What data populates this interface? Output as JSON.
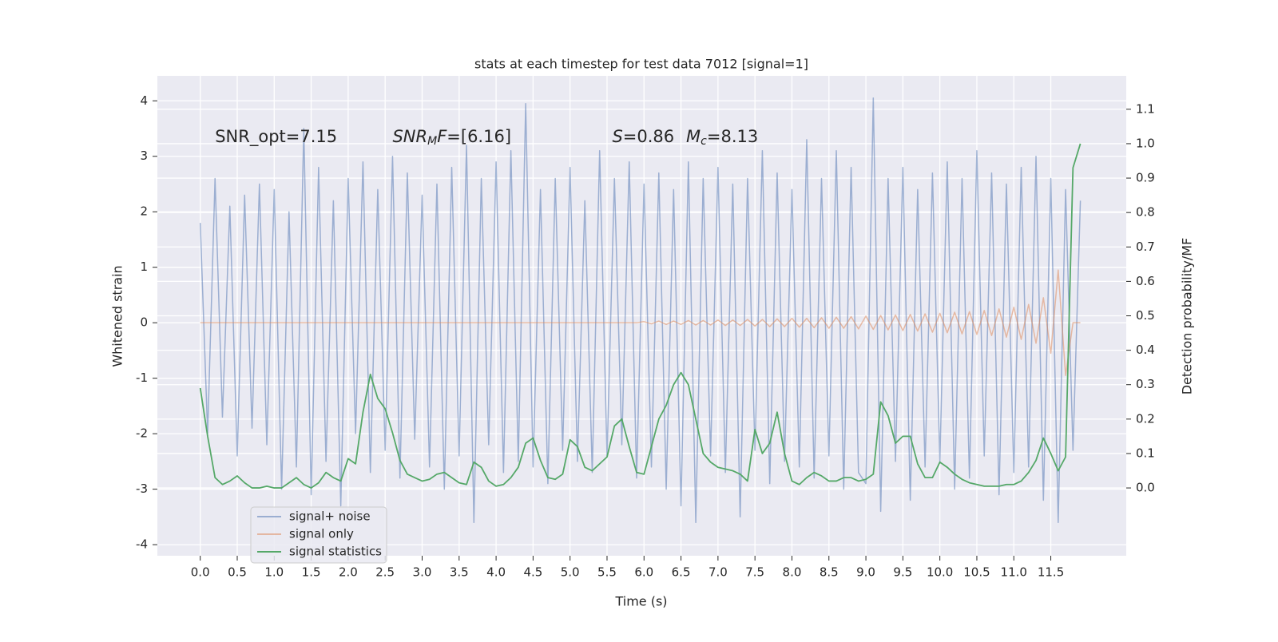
{
  "chart_data": {
    "type": "line",
    "title": "stats at each timestep for test data 7012 [signal=1]",
    "xlabel": "Time (s)",
    "ylabel": "Whitened strain",
    "y2label": "Detection probability/MF",
    "xlim": [
      -0.58,
      12.52
    ],
    "ylim": [
      -4.2,
      4.45
    ],
    "y2lim": [
      -0.197,
      1.197
    ],
    "grid": true,
    "background": "#eaeaf2",
    "xticks": [
      {
        "value": 0,
        "label": "0.0"
      },
      {
        "value": 0.5,
        "label": "0.5"
      },
      {
        "value": 1,
        "label": "1.0"
      },
      {
        "value": 1.5,
        "label": "1.5"
      },
      {
        "value": 2,
        "label": "2.0"
      },
      {
        "value": 2.5,
        "label": "2.5"
      },
      {
        "value": 3,
        "label": "3.0"
      },
      {
        "value": 3.5,
        "label": "3.5"
      },
      {
        "value": 4,
        "label": "4.0"
      },
      {
        "value": 4.5,
        "label": "4.5"
      },
      {
        "value": 5,
        "label": "5.0"
      },
      {
        "value": 5.5,
        "label": "5.5"
      },
      {
        "value": 6,
        "label": "6.0"
      },
      {
        "value": 6.5,
        "label": "6.5"
      },
      {
        "value": 7,
        "label": "7.0"
      },
      {
        "value": 7.5,
        "label": "7.5"
      },
      {
        "value": 8,
        "label": "8.0"
      },
      {
        "value": 8.5,
        "label": "8.5"
      },
      {
        "value": 9,
        "label": "9.0"
      },
      {
        "value": 9.5,
        "label": "9.5"
      },
      {
        "value": 10,
        "label": "10.0"
      },
      {
        "value": 10.5,
        "label": "10.5"
      },
      {
        "value": 11,
        "label": "11.0"
      },
      {
        "value": 11.5,
        "label": "11.5"
      }
    ],
    "yticks": [
      -4,
      -3,
      -2,
      -1,
      0,
      1,
      2,
      3,
      4
    ],
    "y2ticks": [
      {
        "value": 0,
        "label": "0.0"
      },
      {
        "value": 0.1,
        "label": "0.1"
      },
      {
        "value": 0.2,
        "label": "0.2"
      },
      {
        "value": 0.3,
        "label": "0.3"
      },
      {
        "value": 0.4,
        "label": "0.4"
      },
      {
        "value": 0.5,
        "label": "0.5"
      },
      {
        "value": 0.6,
        "label": "0.6"
      },
      {
        "value": 0.7,
        "label": "0.7"
      },
      {
        "value": 0.8,
        "label": "0.8"
      },
      {
        "value": 0.9,
        "label": "0.9"
      },
      {
        "value": 1,
        "label": "1.0"
      },
      {
        "value": 1.1,
        "label": "1.1"
      }
    ],
    "x": [
      0,
      0.1,
      0.2,
      0.3,
      0.4,
      0.5,
      0.6,
      0.7,
      0.8,
      0.9,
      1,
      1.1,
      1.2,
      1.3,
      1.4,
      1.5,
      1.6,
      1.7,
      1.8,
      1.9,
      2,
      2.1,
      2.2,
      2.3,
      2.4,
      2.5,
      2.6,
      2.7,
      2.8,
      2.9,
      3,
      3.1,
      3.2,
      3.3,
      3.4,
      3.5,
      3.6,
      3.7,
      3.8,
      3.9,
      4,
      4.1,
      4.2,
      4.3,
      4.4,
      4.5,
      4.6,
      4.7,
      4.8,
      4.9,
      5,
      5.1,
      5.2,
      5.3,
      5.4,
      5.5,
      5.6,
      5.7,
      5.8,
      5.9,
      6,
      6.1,
      6.2,
      6.3,
      6.4,
      6.5,
      6.6,
      6.7,
      6.8,
      6.9,
      7,
      7.1,
      7.2,
      7.3,
      7.4,
      7.5,
      7.6,
      7.7,
      7.8,
      7.9,
      8,
      8.1,
      8.2,
      8.3,
      8.4,
      8.5,
      8.6,
      8.7,
      8.8,
      8.9,
      9,
      9.1,
      9.2,
      9.3,
      9.4,
      9.5,
      9.6,
      9.7,
      9.8,
      9.9,
      10,
      10.1,
      10.2,
      10.3,
      10.4,
      10.5,
      10.6,
      10.7,
      10.8,
      10.9,
      11,
      11.1,
      11.2,
      11.3,
      11.4,
      11.5,
      11.6,
      11.7,
      11.8,
      11.9
    ],
    "series": [
      {
        "name": "signal+ noise",
        "color": "#4c72b0",
        "opacity": 0.5,
        "values": [
          1.8,
          -2.0,
          2.6,
          -1.7,
          2.1,
          -2.4,
          2.3,
          -1.9,
          2.5,
          -2.2,
          2.4,
          -3.0,
          2.0,
          -2.6,
          3.5,
          -3.1,
          2.8,
          -2.5,
          2.2,
          -3.3,
          2.6,
          -2.0,
          2.9,
          -2.7,
          2.4,
          -2.3,
          3.0,
          -2.8,
          2.7,
          -2.1,
          2.3,
          -2.6,
          2.5,
          -3.0,
          2.8,
          -2.4,
          3.2,
          -3.6,
          2.6,
          -2.2,
          2.9,
          -2.7,
          3.1,
          -2.5,
          3.95,
          -2.6,
          2.4,
          -2.9,
          2.6,
          -2.3,
          2.8,
          -2.5,
          2.2,
          -2.7,
          3.1,
          -2.4,
          2.6,
          -2.2,
          2.9,
          -2.8,
          2.5,
          -2.6,
          2.7,
          -3.0,
          2.4,
          -3.3,
          2.9,
          -3.6,
          2.6,
          -2.4,
          2.8,
          -2.7,
          2.5,
          -3.5,
          2.6,
          -2.3,
          3.1,
          -2.9,
          2.7,
          -2.5,
          2.4,
          -2.6,
          3.3,
          -2.8,
          2.6,
          -2.4,
          3.1,
          -3.0,
          2.8,
          -2.7,
          -2.9,
          4.05,
          -3.4,
          2.6,
          -2.5,
          2.8,
          -3.2,
          2.4,
          -2.6,
          2.7,
          -2.5,
          2.9,
          -3.0,
          2.6,
          -2.8,
          3.1,
          -2.4,
          2.7,
          -3.1,
          2.5,
          -2.7,
          2.8,
          -2.6,
          3.0,
          -3.2,
          2.6,
          -3.6,
          2.4,
          -2.3,
          2.2
        ]
      },
      {
        "name": "signal only",
        "color": "#dd8452",
        "opacity": 0.5,
        "values": [
          0,
          0,
          0,
          0,
          0,
          0,
          0,
          0,
          0,
          0,
          0,
          0,
          0,
          0,
          0,
          0,
          0,
          0,
          0,
          0,
          0,
          0,
          0,
          0,
          0,
          0,
          0,
          0,
          0,
          0,
          0,
          0,
          0,
          0,
          0,
          0,
          0,
          0,
          0,
          0,
          0,
          0,
          0,
          0,
          0,
          0,
          0,
          0,
          0,
          0,
          0,
          0,
          0,
          0,
          0,
          0,
          0,
          0,
          0,
          0,
          0.02,
          -0.02,
          0.03,
          -0.03,
          0.03,
          -0.03,
          0.04,
          -0.04,
          0.04,
          -0.04,
          0.05,
          -0.05,
          0.05,
          -0.05,
          0.06,
          -0.06,
          0.06,
          -0.07,
          0.07,
          -0.07,
          0.08,
          -0.08,
          0.08,
          -0.09,
          0.09,
          -0.1,
          0.1,
          -0.1,
          0.11,
          -0.11,
          0.12,
          -0.12,
          0.13,
          -0.13,
          0.14,
          -0.14,
          0.15,
          -0.15,
          0.16,
          -0.17,
          0.17,
          -0.18,
          0.19,
          -0.2,
          0.2,
          -0.21,
          0.22,
          -0.23,
          0.25,
          -0.26,
          0.28,
          -0.3,
          0.33,
          -0.37,
          0.45,
          -0.55,
          0.95,
          -0.95,
          0,
          0
        ]
      },
      {
        "name": "signal statistics",
        "color": "#55a868",
        "opacity": 1,
        "axis": "y2",
        "values": [
          0.29,
          0.15,
          0.03,
          0.01,
          0.02,
          0.035,
          0.015,
          0,
          0,
          0.005,
          0,
          0,
          0.015,
          0.03,
          0.01,
          0,
          0.015,
          0.045,
          0.03,
          0.02,
          0.085,
          0.07,
          0.22,
          0.33,
          0.26,
          0.23,
          0.16,
          0.08,
          0.04,
          0.03,
          0.02,
          0.025,
          0.04,
          0.045,
          0.03,
          0.015,
          0.01,
          0.075,
          0.06,
          0.02,
          0.005,
          0.01,
          0.03,
          0.06,
          0.13,
          0.145,
          0.08,
          0.03,
          0.025,
          0.04,
          0.14,
          0.12,
          0.06,
          0.05,
          0.07,
          0.09,
          0.18,
          0.2,
          0.12,
          0.045,
          0.04,
          0.12,
          0.2,
          0.24,
          0.3,
          0.335,
          0.3,
          0.2,
          0.1,
          0.075,
          0.06,
          0.055,
          0.05,
          0.04,
          0.02,
          0.17,
          0.1,
          0.13,
          0.22,
          0.1,
          0.02,
          0.01,
          0.03,
          0.045,
          0.035,
          0.02,
          0.02,
          0.03,
          0.03,
          0.02,
          0.025,
          0.04,
          0.25,
          0.21,
          0.13,
          0.15,
          0.15,
          0.07,
          0.03,
          0.03,
          0.075,
          0.06,
          0.04,
          0.025,
          0.015,
          0.01,
          0.005,
          0.005,
          0.005,
          0.01,
          0.01,
          0.02,
          0.045,
          0.08,
          0.145,
          0.1,
          0.05,
          0.09,
          0.93,
          1.0
        ]
      }
    ],
    "annotations": [
      {
        "x": 0.2,
        "y": 3.34,
        "parts": [
          {
            "text": "SNR_opt=7.15"
          }
        ]
      },
      {
        "x": 2.6,
        "y": 3.34,
        "parts": [
          {
            "text": "SNR",
            "style": "italic"
          },
          {
            "text": "M",
            "style": "sub"
          },
          {
            "text": "F",
            "style": "italic"
          },
          {
            "text": "=[6.16]"
          }
        ]
      },
      {
        "x": 5.57,
        "y": 3.34,
        "parts": [
          {
            "text": "S",
            "style": "italic"
          },
          {
            "text": "=0.86"
          }
        ]
      },
      {
        "x": 6.57,
        "y": 3.34,
        "parts": [
          {
            "text": "M",
            "style": "italic"
          },
          {
            "text": "c",
            "style": "sub"
          },
          {
            "text": "=8.13"
          }
        ]
      }
    ]
  }
}
